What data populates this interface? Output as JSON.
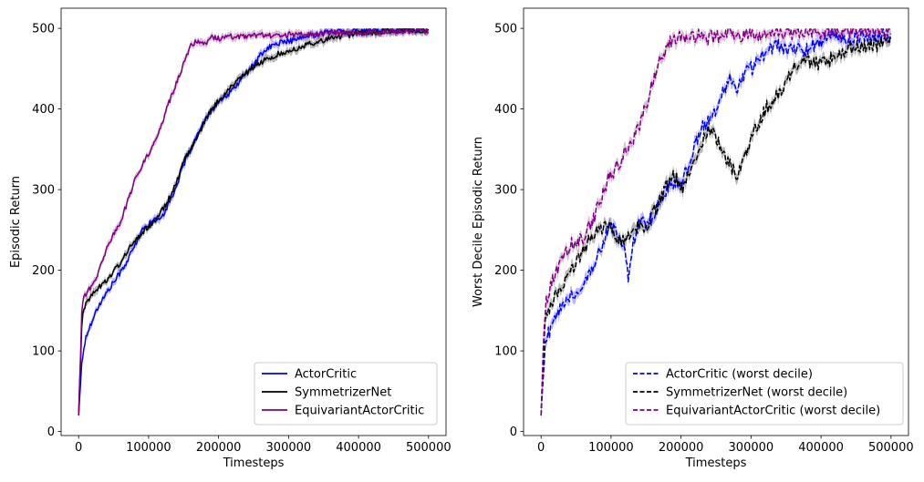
{
  "chart_data": [
    {
      "type": "line",
      "xlabel": "Timesteps",
      "ylabel": "Episodic Return",
      "xlim": [
        -25000,
        525000
      ],
      "ylim": [
        -5,
        525
      ],
      "xticks": [
        0,
        100000,
        200000,
        300000,
        400000,
        500000
      ],
      "xtick_labels": [
        "0",
        "100000",
        "200000",
        "300000",
        "400000",
        "500000"
      ],
      "yticks": [
        0,
        100,
        200,
        300,
        400,
        500
      ],
      "ytick_labels": [
        "0",
        "100",
        "200",
        "300",
        "400",
        "500"
      ],
      "grid": false,
      "legend_position": "lower right",
      "series": [
        {
          "name": "ActorCritic",
          "color": "#0000ff",
          "dash": "solid",
          "x": [
            0,
            5000,
            10000,
            20000,
            30000,
            40000,
            50000,
            60000,
            70000,
            80000,
            90000,
            100000,
            110000,
            120000,
            130000,
            140000,
            150000,
            160000,
            170000,
            180000,
            190000,
            200000,
            210000,
            220000,
            230000,
            240000,
            250000,
            260000,
            270000,
            280000,
            290000,
            300000,
            320000,
            340000,
            360000,
            380000,
            400000,
            420000,
            440000,
            460000,
            480000,
            500000
          ],
          "y": [
            20,
            90,
            115,
            140,
            158,
            172,
            185,
            198,
            212,
            230,
            248,
            258,
            262,
            268,
            285,
            305,
            330,
            350,
            368,
            385,
            398,
            408,
            415,
            423,
            435,
            445,
            455,
            467,
            475,
            480,
            483,
            484,
            488,
            493,
            496,
            497,
            497,
            498,
            498,
            498,
            498,
            498
          ]
        },
        {
          "name": "SymmetrizerNet",
          "color": "#000000",
          "dash": "solid",
          "x": [
            0,
            5000,
            10000,
            20000,
            30000,
            40000,
            50000,
            60000,
            70000,
            80000,
            90000,
            100000,
            110000,
            120000,
            130000,
            140000,
            150000,
            160000,
            170000,
            180000,
            190000,
            200000,
            210000,
            220000,
            230000,
            240000,
            250000,
            260000,
            270000,
            280000,
            290000,
            300000,
            320000,
            340000,
            360000,
            380000,
            400000,
            420000,
            440000,
            460000,
            480000,
            500000
          ],
          "y": [
            20,
            140,
            160,
            170,
            180,
            188,
            198,
            210,
            225,
            235,
            245,
            255,
            262,
            275,
            290,
            310,
            335,
            350,
            365,
            385,
            400,
            410,
            420,
            430,
            437,
            445,
            452,
            458,
            462,
            466,
            470,
            472,
            478,
            483,
            488,
            491,
            494,
            495,
            496,
            497,
            497,
            497
          ]
        },
        {
          "name": "EquivariantActorCritic",
          "color": "#800080",
          "dash": "solid",
          "x": [
            0,
            5000,
            10000,
            20000,
            30000,
            40000,
            50000,
            60000,
            70000,
            80000,
            90000,
            100000,
            110000,
            120000,
            130000,
            140000,
            150000,
            160000,
            170000,
            180000,
            190000,
            200000,
            220000,
            240000,
            260000,
            280000,
            300000,
            320000,
            340000,
            360000,
            380000,
            400000,
            420000,
            440000,
            460000,
            480000,
            500000
          ],
          "y": [
            20,
            160,
            170,
            182,
            200,
            228,
            245,
            260,
            285,
            310,
            330,
            345,
            362,
            385,
            410,
            432,
            455,
            478,
            485,
            480,
            490,
            487,
            490,
            489,
            492,
            490,
            492,
            492,
            493,
            495,
            494,
            494,
            495,
            496,
            497,
            497,
            497
          ]
        }
      ]
    },
    {
      "type": "line",
      "xlabel": "Timesteps",
      "ylabel": "Worst Decile Episodic Return",
      "xlim": [
        -25000,
        525000
      ],
      "ylim": [
        -5,
        525
      ],
      "xticks": [
        0,
        100000,
        200000,
        300000,
        400000,
        500000
      ],
      "xtick_labels": [
        "0",
        "100000",
        "200000",
        "300000",
        "400000",
        "500000"
      ],
      "yticks": [
        0,
        100,
        200,
        300,
        400,
        500
      ],
      "ytick_labels": [
        "0",
        "100",
        "200",
        "300",
        "400",
        "500"
      ],
      "grid": false,
      "legend_position": "lower right",
      "series": [
        {
          "name": "ActorCritic (worst decile)",
          "color": "#0000ff",
          "dash": "dashed",
          "x": [
            0,
            5000,
            10000,
            20000,
            30000,
            40000,
            50000,
            60000,
            70000,
            80000,
            90000,
            100000,
            110000,
            120000,
            125000,
            130000,
            140000,
            150000,
            160000,
            170000,
            180000,
            190000,
            200000,
            210000,
            220000,
            230000,
            240000,
            250000,
            260000,
            270000,
            280000,
            290000,
            300000,
            320000,
            340000,
            360000,
            380000,
            400000,
            420000,
            440000,
            460000,
            480000,
            500000
          ],
          "y": [
            20,
            100,
            120,
            140,
            160,
            168,
            175,
            182,
            195,
            215,
            240,
            255,
            248,
            225,
            185,
            225,
            260,
            258,
            265,
            285,
            300,
            310,
            305,
            330,
            355,
            375,
            390,
            395,
            420,
            435,
            420,
            445,
            450,
            470,
            480,
            472,
            475,
            485,
            490,
            488,
            490,
            492,
            492
          ]
        },
        {
          "name": "SymmetrizerNet (worst decile)",
          "color": "#000000",
          "dash": "dashed",
          "x": [
            0,
            5000,
            10000,
            20000,
            30000,
            40000,
            50000,
            60000,
            70000,
            80000,
            90000,
            100000,
            110000,
            120000,
            130000,
            140000,
            150000,
            160000,
            170000,
            180000,
            190000,
            200000,
            210000,
            220000,
            230000,
            240000,
            250000,
            260000,
            270000,
            280000,
            290000,
            300000,
            320000,
            340000,
            360000,
            380000,
            400000,
            420000,
            440000,
            460000,
            480000,
            500000
          ],
          "y": [
            20,
            135,
            150,
            165,
            178,
            195,
            210,
            225,
            240,
            250,
            255,
            255,
            240,
            235,
            250,
            255,
            250,
            270,
            285,
            305,
            320,
            300,
            315,
            340,
            360,
            375,
            365,
            350,
            330,
            320,
            335,
            365,
            400,
            420,
            450,
            460,
            455,
            465,
            475,
            478,
            480,
            485
          ]
        },
        {
          "name": "EquivariantActorCritic (worst decile)",
          "color": "#800080",
          "dash": "dashed",
          "x": [
            0,
            5000,
            10000,
            20000,
            30000,
            40000,
            50000,
            60000,
            70000,
            80000,
            90000,
            100000,
            110000,
            120000,
            130000,
            140000,
            150000,
            160000,
            170000,
            180000,
            190000,
            200000,
            210000,
            220000,
            230000,
            240000,
            250000,
            260000,
            270000,
            280000,
            290000,
            300000,
            320000,
            340000,
            360000,
            380000,
            400000,
            420000,
            440000,
            460000,
            480000,
            500000
          ],
          "y": [
            20,
            150,
            170,
            195,
            215,
            230,
            235,
            240,
            255,
            275,
            300,
            320,
            330,
            345,
            360,
            380,
            405,
            435,
            465,
            475,
            490,
            490,
            485,
            492,
            494,
            487,
            493,
            490,
            492,
            488,
            495,
            492,
            493,
            494,
            494,
            495,
            495,
            496,
            496,
            497,
            497,
            497
          ]
        }
      ]
    }
  ]
}
